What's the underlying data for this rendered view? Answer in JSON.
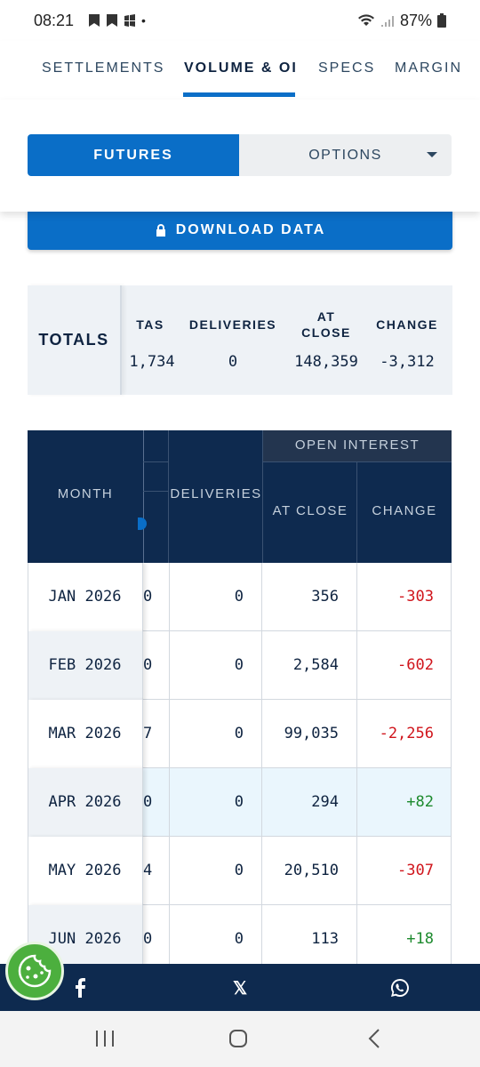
{
  "status": {
    "time": "08:21",
    "battery": "87%"
  },
  "tabs": [
    {
      "label": "SETTLEMENTS",
      "active": false
    },
    {
      "label": "VOLUME & OI",
      "active": true
    },
    {
      "label": "SPECS",
      "active": false
    },
    {
      "label": "MARGIN",
      "active": false
    }
  ],
  "toggle": {
    "futures_label": "FUTURES",
    "options_label": "OPTIONS"
  },
  "download": {
    "label": "DOWNLOAD DATA"
  },
  "totals": {
    "label": "TOTALS",
    "columns": [
      {
        "header": "TAS",
        "value": "1,734"
      },
      {
        "header": "DELIVERIES",
        "value": "0"
      },
      {
        "header_line1": "AT",
        "header_line2": "CLOSE",
        "value": "148,359"
      },
      {
        "header": "CHANGE",
        "value": "-3,312"
      }
    ]
  },
  "table": {
    "headers": {
      "month": "MONTH",
      "deliveries": "DELIVERIES",
      "open_interest": "OPEN INTEREST",
      "at_close": "AT CLOSE",
      "change": "CHANGE"
    },
    "rows": [
      {
        "month": "JAN 2026",
        "cut": "0",
        "deliveries": "0",
        "at_close": "356",
        "change": "-303",
        "sign": "neg"
      },
      {
        "month": "FEB 2026",
        "cut": "0",
        "deliveries": "0",
        "at_close": "2,584",
        "change": "-602",
        "sign": "neg"
      },
      {
        "month": "MAR 2026",
        "cut": "7",
        "deliveries": "0",
        "at_close": "99,035",
        "change": "-2,256",
        "sign": "neg"
      },
      {
        "month": "APR 2026",
        "cut": "0",
        "deliveries": "0",
        "at_close": "294",
        "change": "+82",
        "sign": "pos"
      },
      {
        "month": "MAY 2026",
        "cut": "4",
        "deliveries": "0",
        "at_close": "20,510",
        "change": "-307",
        "sign": "neg"
      },
      {
        "month": "JUN 2026",
        "cut": "0",
        "deliveries": "0",
        "at_close": "113",
        "change": "+18",
        "sign": "pos"
      }
    ]
  },
  "social": {
    "x_glyph": "𝕏"
  },
  "colors": {
    "primary": "#0a6ec7",
    "navy": "#0e2a4f",
    "negative": "#d0141b",
    "positive": "#1d8a2e"
  }
}
